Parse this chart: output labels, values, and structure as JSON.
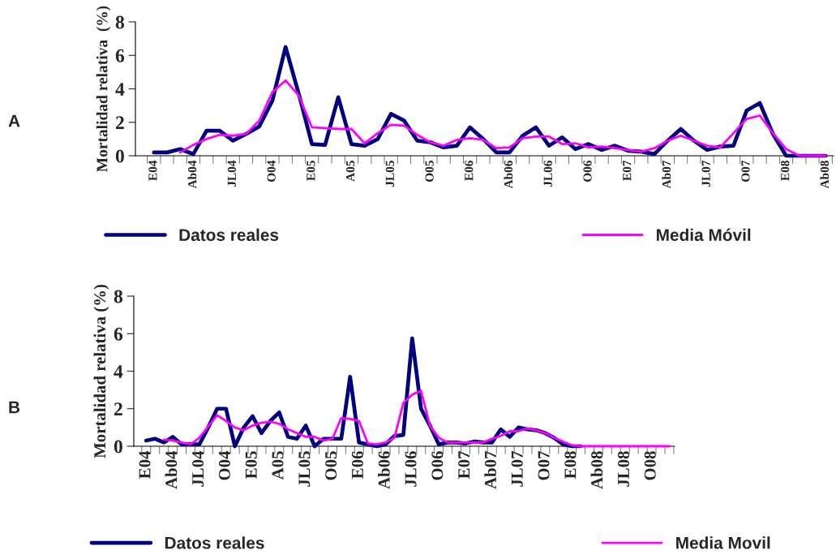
{
  "chart_data": [
    {
      "type": "line",
      "ylabel": "Mortalidad relativa  (%)",
      "annotations": [
        "A"
      ],
      "ylim": [
        0,
        8
      ],
      "yticks": [
        0,
        2,
        4,
        6,
        8
      ],
      "grid": false,
      "legend": "bottom",
      "marker": "none",
      "line_style": "solid",
      "categories": [
        "E04",
        null,
        null,
        "Ab04",
        null,
        null,
        "JL04",
        null,
        null,
        "O04",
        null,
        null,
        "E05",
        null,
        null,
        "A05",
        null,
        null,
        "JL05",
        null,
        null,
        "O05",
        null,
        null,
        "E06",
        null,
        null,
        "Ab06",
        null,
        null,
        "JL06",
        null,
        null,
        "O06",
        null,
        null,
        "E07",
        null,
        null,
        "Ab07",
        null,
        null,
        "JL07",
        null,
        null,
        "O07",
        null,
        null,
        "E08",
        null,
        null,
        "Ab08"
      ],
      "series": [
        {
          "name": "Datos reales",
          "color": "#000080",
          "values": [
            0.2,
            0.2,
            0.4,
            0.1,
            1.5,
            1.5,
            0.9,
            1.3,
            1.75,
            3.3,
            6.5,
            3.7,
            0.7,
            0.65,
            3.5,
            0.7,
            0.6,
            1.0,
            2.5,
            2.1,
            0.9,
            0.8,
            0.5,
            0.6,
            1.7,
            1.0,
            0.2,
            0.2,
            1.2,
            1.7,
            0.6,
            1.1,
            0.4,
            0.7,
            0.35,
            0.6,
            0.3,
            0.25,
            0.1,
            0.9,
            1.6,
            0.9,
            0.35,
            0.55,
            0.6,
            2.7,
            3.15,
            1.3,
            0,
            0,
            0,
            0
          ]
        },
        {
          "name": "Media Móvil",
          "color": "#ff00ff",
          "values": [
            null,
            null,
            0.2,
            0.65,
            1.0,
            1.25,
            1.2,
            1.3,
            2.1,
            3.8,
            4.5,
            3.6,
            1.7,
            1.65,
            1.6,
            1.6,
            0.75,
            1.35,
            1.85,
            1.8,
            1.25,
            0.8,
            0.6,
            0.95,
            1.05,
            0.95,
            0.45,
            0.5,
            1.05,
            1.15,
            1.15,
            0.7,
            0.75,
            0.5,
            0.55,
            0.45,
            0.35,
            0.25,
            0.45,
            0.9,
            1.2,
            0.9,
            0.6,
            0.5,
            1.35,
            2.2,
            2.4,
            1.35,
            0.4,
            0,
            0,
            0
          ]
        }
      ]
    },
    {
      "type": "line",
      "ylabel": "Mortalidad relativa (%)",
      "annotations": [
        "B"
      ],
      "ylim": [
        0,
        8
      ],
      "yticks": [
        0,
        2,
        4,
        6,
        8
      ],
      "grid": false,
      "legend": "bottom",
      "marker": "none",
      "line_style": "solid",
      "categories": [
        "E04",
        null,
        null,
        "Ab04",
        null,
        null,
        "JL04",
        null,
        null,
        "O04",
        null,
        null,
        "E05",
        null,
        null,
        "A05",
        null,
        null,
        "JL05",
        null,
        null,
        "O05",
        null,
        null,
        "E06",
        null,
        null,
        "Ab06",
        null,
        null,
        "JL06",
        null,
        null,
        "O06",
        null,
        null,
        "E07",
        null,
        null,
        "Ab07",
        null,
        null,
        "JL07",
        null,
        null,
        "O07",
        null,
        null,
        "E08",
        null,
        null,
        "Ab08",
        null,
        null,
        "JL08",
        null,
        null,
        "O08",
        null,
        null
      ],
      "series": [
        {
          "name": "Datos reales",
          "color": "#000080",
          "values": [
            0.3,
            0.4,
            0.2,
            0.5,
            0.1,
            0.1,
            0.1,
            1.0,
            2.0,
            2.0,
            0,
            1.0,
            1.6,
            0.7,
            1.35,
            1.8,
            0.5,
            0.4,
            1.1,
            0,
            0.4,
            0.4,
            0.4,
            3.7,
            0.2,
            0.1,
            0,
            0.1,
            0.55,
            0.6,
            5.75,
            2.0,
            1.1,
            0.1,
            0.2,
            0.2,
            0.15,
            0.25,
            0.2,
            0.2,
            0.9,
            0.5,
            1.0,
            0.9,
            0.85,
            0.7,
            0.45,
            0.1,
            0,
            0,
            null,
            null,
            null,
            null,
            null,
            null,
            null,
            null,
            null,
            null
          ]
        },
        {
          "name": "Media Movil",
          "color": "#ff00ff",
          "values": [
            null,
            null,
            0.35,
            0.3,
            0.2,
            0.1,
            0.45,
            1.05,
            1.65,
            1.35,
            1.0,
            0.85,
            1.1,
            1.25,
            1.3,
            1.2,
            0.9,
            0.7,
            0.5,
            0.5,
            0.3,
            0.4,
            1.5,
            1.45,
            1.35,
            0.15,
            0.1,
            0.2,
            0.45,
            2.3,
            2.75,
            2.95,
            1.1,
            0.45,
            0.2,
            0.2,
            0.2,
            0.2,
            0.2,
            0.4,
            0.55,
            0.8,
            0.8,
            0.95,
            0.85,
            0.7,
            0.45,
            0.25,
            0.05,
            0,
            0,
            0,
            0,
            0,
            0,
            0,
            0,
            0,
            0,
            0
          ]
        }
      ]
    }
  ]
}
